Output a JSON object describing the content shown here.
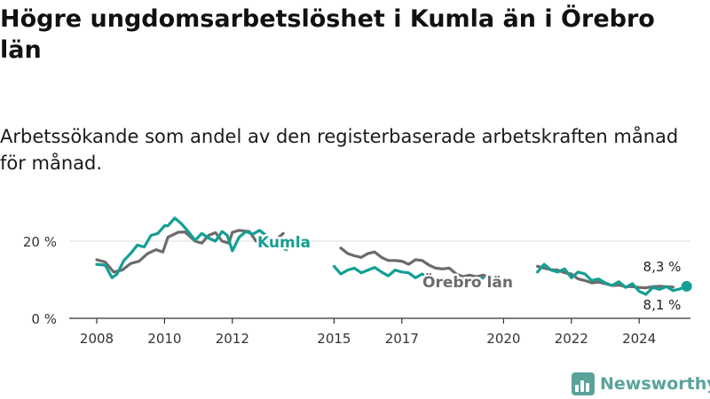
{
  "title": "Högre ungdomsarbetslöshet i Kumla än i Örebro län",
  "subtitle": "Arbetssökande som andel av den registerbaserade arbetskraften månad för månad.",
  "brand": {
    "name": "Newsworthy",
    "color": "#5aa39b"
  },
  "chart_data": {
    "type": "line",
    "x_tick_labels": [
      "2008",
      "2010",
      "2012",
      "2015",
      "2017",
      "2020",
      "2022",
      "2024"
    ],
    "x_ticks": [
      2008,
      2010,
      2012,
      2015,
      2017,
      2020,
      2022,
      2024
    ],
    "xlim": [
      2007.25,
      2025.5
    ],
    "ylim": [
      0,
      30
    ],
    "y_ticks": [
      0,
      20
    ],
    "y_tick_labels": [
      "0 %",
      "20 %"
    ],
    "grid": true,
    "series": [
      {
        "name": "Örebro län",
        "color": "#6e6a6b",
        "end_label": "8,1 %",
        "segments": [
          [
            [
              2008.0,
              15.2
            ],
            [
              2008.25,
              14.6
            ],
            [
              2008.5,
              12.0
            ],
            [
              2008.75,
              12.5
            ],
            [
              2009.0,
              14.2
            ],
            [
              2009.25,
              14.8
            ],
            [
              2009.5,
              16.8
            ],
            [
              2009.75,
              17.8
            ],
            [
              2009.95,
              17.2
            ],
            [
              2010.1,
              21.0
            ],
            [
              2010.4,
              22.3
            ],
            [
              2010.6,
              22.4
            ],
            [
              2010.9,
              20.0
            ],
            [
              2011.1,
              19.5
            ],
            [
              2011.3,
              21.5
            ],
            [
              2011.5,
              22.2
            ],
            [
              2011.7,
              20.0
            ],
            [
              2011.9,
              19.5
            ],
            [
              2012.0,
              22.3
            ],
            [
              2012.2,
              22.8
            ],
            [
              2012.5,
              22.5
            ],
            [
              2012.7,
              20.0
            ],
            [
              2012.9,
              21.0
            ],
            [
              2013.1,
              18.5
            ],
            [
              2013.3,
              20.5
            ],
            [
              2013.5,
              22.0
            ]
          ],
          [
            [
              2015.2,
              18.2
            ],
            [
              2015.4,
              16.8
            ],
            [
              2015.6,
              16.2
            ],
            [
              2015.8,
              15.8
            ],
            [
              2016.0,
              16.8
            ],
            [
              2016.2,
              17.2
            ],
            [
              2016.4,
              15.8
            ],
            [
              2016.6,
              15.0
            ],
            [
              2016.8,
              15.0
            ],
            [
              2017.0,
              14.8
            ],
            [
              2017.2,
              14.0
            ],
            [
              2017.4,
              15.2
            ],
            [
              2017.6,
              15.0
            ],
            [
              2017.8,
              13.8
            ],
            [
              2018.0,
              13.0
            ],
            [
              2018.2,
              12.8
            ],
            [
              2018.4,
              13.0
            ],
            [
              2018.6,
              11.5
            ],
            [
              2018.8,
              10.8
            ],
            [
              2019.0,
              11.2
            ],
            [
              2019.2,
              10.8
            ],
            [
              2019.4,
              11.2
            ],
            [
              2019.6,
              10.5
            ]
          ],
          [
            [
              2021.0,
              13.5
            ],
            [
              2021.2,
              13.0
            ],
            [
              2021.4,
              12.6
            ],
            [
              2021.6,
              12.5
            ],
            [
              2021.8,
              11.8
            ],
            [
              2022.0,
              11.5
            ],
            [
              2022.2,
              10.2
            ],
            [
              2022.4,
              9.8
            ],
            [
              2022.6,
              9.2
            ],
            [
              2022.8,
              9.4
            ],
            [
              2023.0,
              9.0
            ],
            [
              2023.2,
              8.5
            ],
            [
              2023.4,
              8.6
            ],
            [
              2023.6,
              8.2
            ],
            [
              2023.8,
              8.2
            ],
            [
              2024.0,
              8.0
            ],
            [
              2024.2,
              7.9
            ],
            [
              2024.4,
              8.2
            ],
            [
              2024.6,
              8.3
            ],
            [
              2024.8,
              8.2
            ],
            [
              2025.0,
              8.1
            ]
          ]
        ]
      },
      {
        "name": "Kumla",
        "color": "#139f93",
        "end_label": "8,3 %",
        "segments": [
          [
            [
              2008.0,
              14.0
            ],
            [
              2008.25,
              13.8
            ],
            [
              2008.45,
              10.5
            ],
            [
              2008.6,
              11.5
            ],
            [
              2008.8,
              15.0
            ],
            [
              2009.0,
              16.8
            ],
            [
              2009.2,
              19.0
            ],
            [
              2009.4,
              18.5
            ],
            [
              2009.6,
              21.5
            ],
            [
              2009.8,
              22.0
            ],
            [
              2010.0,
              24.0
            ],
            [
              2010.1,
              24.0
            ],
            [
              2010.3,
              26.0
            ],
            [
              2010.5,
              24.5
            ],
            [
              2010.7,
              22.5
            ],
            [
              2010.9,
              20.2
            ],
            [
              2011.1,
              22.0
            ],
            [
              2011.3,
              20.8
            ],
            [
              2011.5,
              20.0
            ],
            [
              2011.7,
              22.5
            ],
            [
              2011.85,
              21.5
            ],
            [
              2012.0,
              17.5
            ],
            [
              2012.2,
              21.0
            ],
            [
              2012.4,
              22.5
            ],
            [
              2012.6,
              21.8
            ],
            [
              2012.8,
              22.8
            ],
            [
              2013.0,
              21.5
            ],
            [
              2013.2,
              19.5
            ],
            [
              2013.4,
              18.5
            ],
            [
              2013.6,
              17.8
            ]
          ],
          [
            [
              2015.0,
              13.5
            ],
            [
              2015.2,
              11.5
            ],
            [
              2015.4,
              12.5
            ],
            [
              2015.6,
              13.0
            ],
            [
              2015.8,
              11.8
            ],
            [
              2016.0,
              12.5
            ],
            [
              2016.2,
              13.2
            ],
            [
              2016.4,
              12.0
            ],
            [
              2016.6,
              11.0
            ],
            [
              2016.8,
              12.5
            ],
            [
              2017.0,
              12.0
            ],
            [
              2017.2,
              11.8
            ],
            [
              2017.4,
              10.5
            ],
            [
              2017.6,
              11.5
            ],
            [
              2017.8,
              10.5
            ],
            [
              2018.0,
              10.0
            ],
            [
              2018.2,
              10.5
            ],
            [
              2018.4,
              9.2
            ],
            [
              2018.6,
              10.0
            ],
            [
              2018.8,
              8.8
            ],
            [
              2019.0,
              9.5
            ],
            [
              2019.2,
              9.8
            ],
            [
              2019.4,
              10.5
            ]
          ],
          [
            [
              2021.0,
              12.0
            ],
            [
              2021.2,
              14.0
            ],
            [
              2021.4,
              12.5
            ],
            [
              2021.6,
              12.0
            ],
            [
              2021.8,
              12.8
            ],
            [
              2022.0,
              10.5
            ],
            [
              2022.2,
              12.0
            ],
            [
              2022.4,
              11.5
            ],
            [
              2022.6,
              9.8
            ],
            [
              2022.8,
              10.2
            ],
            [
              2023.0,
              9.2
            ],
            [
              2023.2,
              8.5
            ],
            [
              2023.4,
              9.5
            ],
            [
              2023.6,
              8.0
            ],
            [
              2023.8,
              9.0
            ],
            [
              2024.0,
              7.0
            ],
            [
              2024.2,
              6.2
            ],
            [
              2024.4,
              8.0
            ],
            [
              2024.6,
              7.5
            ],
            [
              2024.8,
              8.2
            ],
            [
              2025.0,
              7.2
            ],
            [
              2025.2,
              7.6
            ],
            [
              2025.4,
              8.3
            ]
          ]
        ]
      }
    ],
    "inline_labels": [
      {
        "series": "Kumla",
        "text": "Kumla",
        "color": "#139f93"
      },
      {
        "series": "Örebro län",
        "text": "Örebro län",
        "color": "#6e6a6b"
      }
    ]
  }
}
